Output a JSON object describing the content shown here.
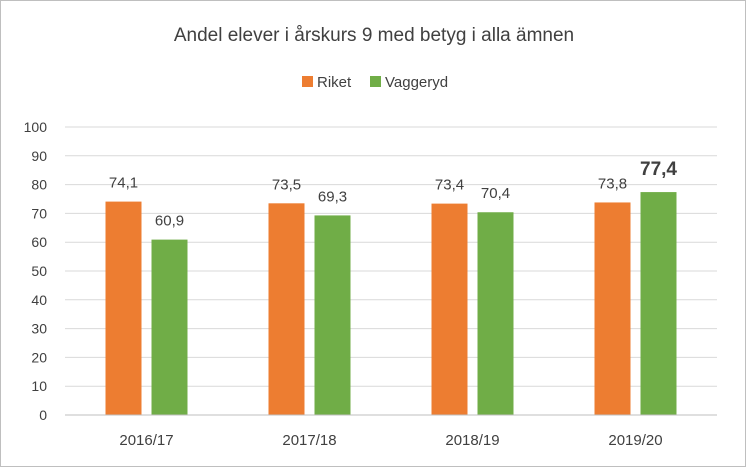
{
  "chart_data": {
    "type": "bar",
    "title": "Andel elever i årskurs 9 med betyg i alla ämnen",
    "categories": [
      "2016/17",
      "2017/18",
      "2018/19",
      "2019/20"
    ],
    "series": [
      {
        "name": "Riket",
        "color": "#ED7D31",
        "values": [
          74.1,
          73.5,
          73.4,
          73.8
        ],
        "labels": [
          "74,1",
          "73,5",
          "73,4",
          "73,8"
        ]
      },
      {
        "name": "Vaggeryd",
        "color": "#70AD47",
        "values": [
          60.9,
          69.3,
          70.4,
          77.4
        ],
        "labels": [
          "60,9",
          "69,3",
          "70,4",
          "77,4"
        ]
      }
    ],
    "emphasized_label": {
      "series": 1,
      "category": 3
    },
    "ylim": [
      0,
      100
    ],
    "yticks": [
      0,
      10,
      20,
      30,
      40,
      50,
      60,
      70,
      80,
      90,
      100
    ],
    "grid": true,
    "legend": "top-center",
    "gridline_color": "#d9d9d9"
  }
}
